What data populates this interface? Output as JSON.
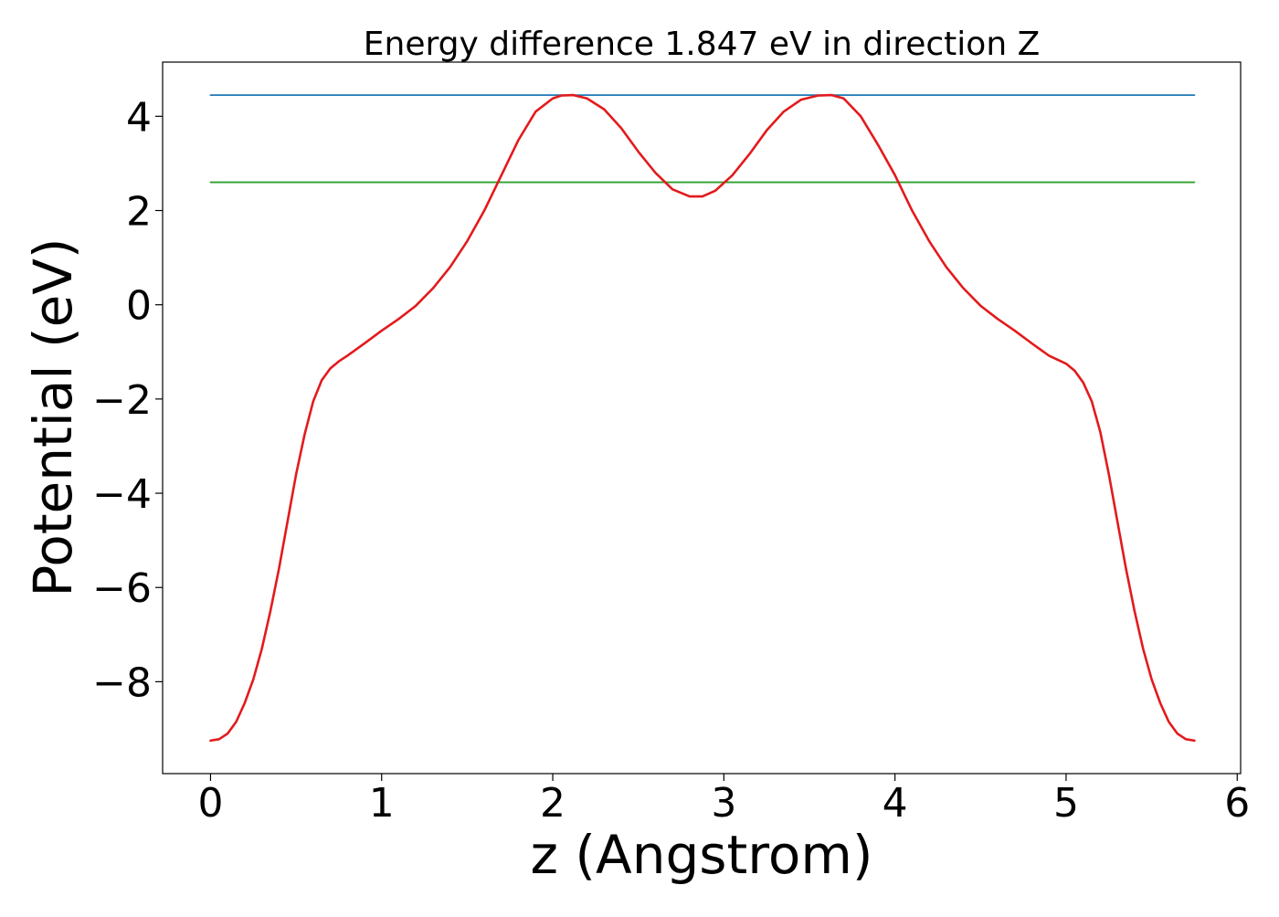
{
  "chart_data": {
    "type": "line",
    "title": "Energy difference 1.847 eV in direction Z",
    "xlabel": "z (Angstrom)",
    "ylabel": "Potential (eV)",
    "xlim": [
      -0.28,
      6.02
    ],
    "ylim": [
      -9.95,
      5.15
    ],
    "xticks": [
      0,
      1,
      2,
      3,
      4,
      5,
      6
    ],
    "yticks": [
      -8,
      -6,
      -4,
      -2,
      0,
      2,
      4
    ],
    "xtick_labels": [
      "0",
      "1",
      "2",
      "3",
      "4",
      "5",
      "6"
    ],
    "ytick_labels": [
      "−8",
      "−6",
      "−4",
      "−2",
      "0",
      "2",
      "4"
    ],
    "grid": false,
    "legend": "none",
    "series": [
      {
        "color": "#1f77b4",
        "x": [
          0,
          5.75
        ],
        "y": [
          4.45,
          4.45
        ]
      },
      {
        "color": "#2ca02c",
        "x": [
          0,
          5.75
        ],
        "y": [
          2.6,
          2.6
        ]
      },
      {
        "color": "#e31a1c",
        "x": [
          0.0,
          0.05,
          0.1,
          0.15,
          0.2,
          0.25,
          0.3,
          0.35,
          0.4,
          0.45,
          0.5,
          0.55,
          0.6,
          0.65,
          0.7,
          0.75,
          0.8,
          0.9,
          1.0,
          1.1,
          1.2,
          1.3,
          1.4,
          1.5,
          1.6,
          1.7,
          1.8,
          1.9,
          2.0,
          2.05,
          2.12,
          2.2,
          2.3,
          2.4,
          2.5,
          2.6,
          2.7,
          2.8,
          2.875,
          2.95,
          3.05,
          3.15,
          3.25,
          3.35,
          3.45,
          3.55,
          3.63,
          3.7,
          3.8,
          3.9,
          4.0,
          4.1,
          4.2,
          4.3,
          4.4,
          4.5,
          4.6,
          4.7,
          4.8,
          4.9,
          5.0,
          5.05,
          5.1,
          5.15,
          5.2,
          5.25,
          5.3,
          5.35,
          5.4,
          5.45,
          5.5,
          5.55,
          5.6,
          5.65,
          5.7,
          5.75
        ],
        "y": [
          -9.25,
          -9.22,
          -9.1,
          -8.85,
          -8.45,
          -7.95,
          -7.3,
          -6.5,
          -5.6,
          -4.6,
          -3.6,
          -2.75,
          -2.05,
          -1.6,
          -1.35,
          -1.2,
          -1.08,
          -0.82,
          -0.55,
          -0.3,
          -0.02,
          0.35,
          0.8,
          1.35,
          2.0,
          2.75,
          3.5,
          4.1,
          4.38,
          4.44,
          4.45,
          4.38,
          4.15,
          3.75,
          3.25,
          2.8,
          2.45,
          2.3,
          2.3,
          2.42,
          2.75,
          3.2,
          3.7,
          4.1,
          4.35,
          4.44,
          4.45,
          4.38,
          4.0,
          3.4,
          2.75,
          2.0,
          1.35,
          0.8,
          0.35,
          -0.02,
          -0.3,
          -0.55,
          -0.82,
          -1.08,
          -1.25,
          -1.4,
          -1.65,
          -2.05,
          -2.7,
          -3.6,
          -4.6,
          -5.6,
          -6.5,
          -7.3,
          -7.95,
          -8.45,
          -8.85,
          -9.1,
          -9.22,
          -9.25
        ]
      }
    ]
  }
}
